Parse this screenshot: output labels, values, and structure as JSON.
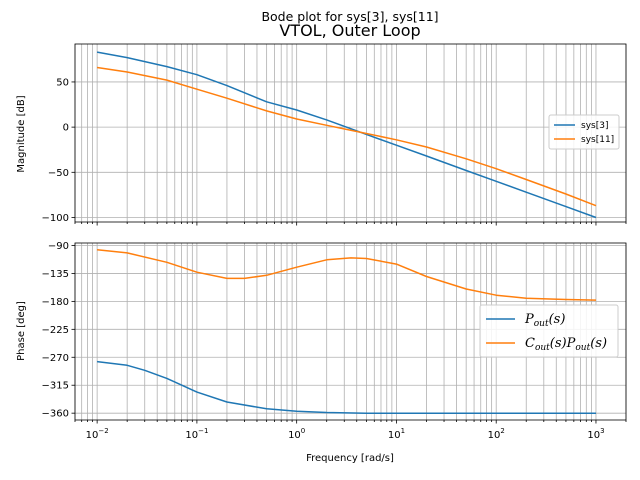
{
  "chart_data": [
    {
      "type": "line",
      "suptitle": "Bode plot for sys[3], sys[11]",
      "title": "VTOL, Outer Loop",
      "xlabel": "",
      "ylabel": "Magnitude [dB]",
      "xscale": "log",
      "xlim": [
        0.006,
        2000
      ],
      "ylim": [
        -105,
        92
      ],
      "yticks": [
        -100,
        -50,
        0,
        50
      ],
      "grid": true,
      "legend": "center-right",
      "legend_entries": [
        "sys[3]",
        "sys[11]"
      ],
      "series": [
        {
          "name": "sys[3]",
          "color": "#1f77b4",
          "x": [
            0.01,
            0.02,
            0.05,
            0.1,
            0.2,
            0.5,
            1,
            2,
            5,
            10,
            20,
            50,
            100,
            200,
            500,
            1000
          ],
          "y": [
            83,
            77,
            67,
            58,
            46,
            28,
            19,
            8,
            -8,
            -20,
            -32,
            -48,
            -60,
            -72,
            -88,
            -100
          ]
        },
        {
          "name": "sys[11]",
          "color": "#ff7f0e",
          "x": [
            0.01,
            0.02,
            0.05,
            0.1,
            0.2,
            0.5,
            1,
            2,
            5,
            10,
            20,
            50,
            100,
            200,
            500,
            1000
          ],
          "y": [
            66,
            61,
            52,
            42,
            32,
            18,
            9,
            2,
            -7,
            -14,
            -22,
            -35,
            -46,
            -58,
            -74,
            -87
          ]
        }
      ]
    },
    {
      "type": "line",
      "title": "",
      "xlabel": "Frequency [rad/s]",
      "ylabel": "Phase [deg]",
      "xscale": "log",
      "xlim": [
        0.006,
        2000
      ],
      "ylim": [
        -371,
        -86
      ],
      "yticks": [
        -90,
        -135,
        -180,
        -225,
        -270,
        -315,
        -360
      ],
      "xticklabels": [
        "10",
        "10",
        "10",
        "10",
        "10",
        "10"
      ],
      "xtickexponents": [
        "−2",
        "−1",
        "0",
        "1",
        "2",
        "3"
      ],
      "grid": true,
      "legend": "center-right",
      "legend_entries": [
        "Pout(s)",
        "Cout(s)Pout(s)"
      ],
      "series": [
        {
          "name": "Pout(s)",
          "color": "#1f77b4",
          "x": [
            0.01,
            0.02,
            0.03,
            0.05,
            0.1,
            0.2,
            0.5,
            1,
            2,
            5,
            10,
            100,
            1000
          ],
          "y": [
            -277,
            -283,
            -291,
            -304,
            -326,
            -342,
            -353,
            -357,
            -359,
            -360,
            -360,
            -360,
            -360
          ]
        },
        {
          "name": "Cout(s)Pout(s)",
          "color": "#ff7f0e",
          "x": [
            0.01,
            0.02,
            0.05,
            0.1,
            0.2,
            0.3,
            0.5,
            1,
            2,
            3.5,
            5,
            10,
            20,
            50,
            100,
            200,
            500,
            1000
          ],
          "y": [
            -97,
            -102,
            -117,
            -133,
            -143,
            -143,
            -138,
            -125,
            -113,
            -110,
            -111,
            -120,
            -140,
            -160,
            -170,
            -175,
            -177,
            -178
          ]
        }
      ]
    }
  ]
}
